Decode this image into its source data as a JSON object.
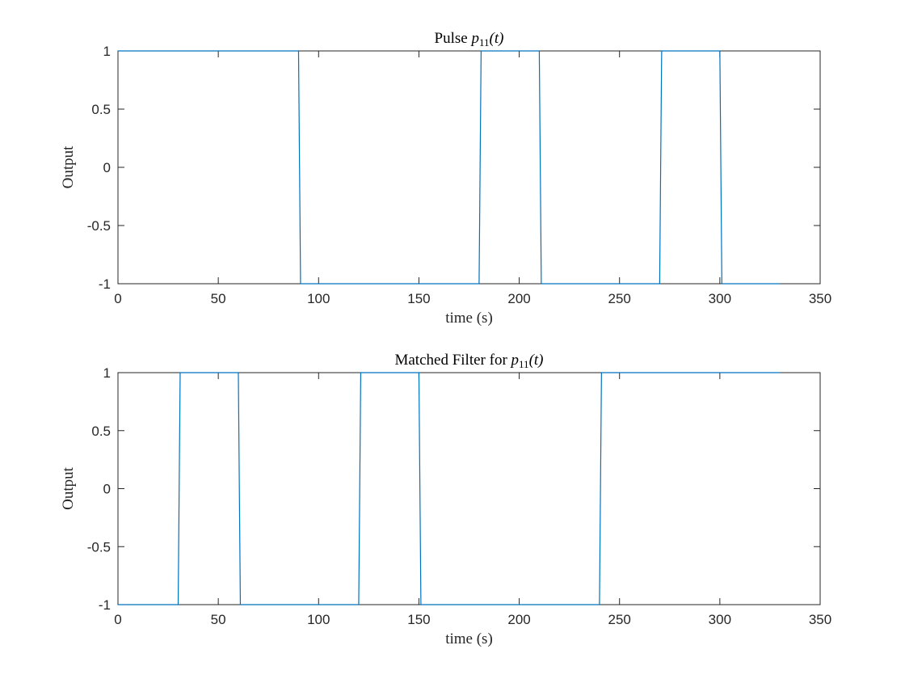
{
  "chart_data": [
    {
      "type": "line",
      "title": "Pulse p11(t)",
      "title_parts": {
        "prefix": "Pulse ",
        "symbol": "p",
        "subscript": "11",
        "arg": "(t)"
      },
      "xlabel": "time (s)",
      "ylabel": "Output",
      "xlim": [
        0,
        350
      ],
      "ylim": [
        -1,
        1
      ],
      "xticks": [
        0,
        50,
        100,
        150,
        200,
        250,
        300,
        350
      ],
      "xtick_labels": [
        "0",
        "50",
        "100",
        "150",
        "200",
        "250",
        "300",
        "350"
      ],
      "yticks": [
        -1,
        -0.5,
        0,
        0.5,
        1
      ],
      "ytick_labels": [
        "-1",
        "-0.5",
        "0",
        "0.5",
        "1"
      ],
      "grid": false,
      "series": [
        {
          "color": "#0072BD",
          "x": [
            0,
            90,
            91,
            180,
            181,
            210,
            211,
            270,
            271,
            300,
            301,
            330
          ],
          "y": [
            1,
            1,
            -1,
            -1,
            1,
            1,
            -1,
            -1,
            1,
            1,
            -1,
            -1
          ]
        }
      ]
    },
    {
      "type": "line",
      "title": "Matched Filter for p11(t)",
      "title_parts": {
        "prefix": "Matched Filter for ",
        "symbol": "p",
        "subscript": "11",
        "arg": "(t)"
      },
      "xlabel": "time (s)",
      "ylabel": "Output",
      "xlim": [
        0,
        350
      ],
      "ylim": [
        -1,
        1
      ],
      "xticks": [
        0,
        50,
        100,
        150,
        200,
        250,
        300,
        350
      ],
      "xtick_labels": [
        "0",
        "50",
        "100",
        "150",
        "200",
        "250",
        "300",
        "350"
      ],
      "yticks": [
        -1,
        -0.5,
        0,
        0.5,
        1
      ],
      "ytick_labels": [
        "-1",
        "-0.5",
        "0",
        "0.5",
        "1"
      ],
      "grid": false,
      "series": [
        {
          "color": "#0072BD",
          "x": [
            0,
            30,
            31,
            60,
            61,
            120,
            121,
            150,
            151,
            240,
            241,
            330
          ],
          "y": [
            -1,
            -1,
            1,
            1,
            -1,
            -1,
            1,
            1,
            -1,
            -1,
            1,
            1
          ]
        }
      ]
    }
  ]
}
